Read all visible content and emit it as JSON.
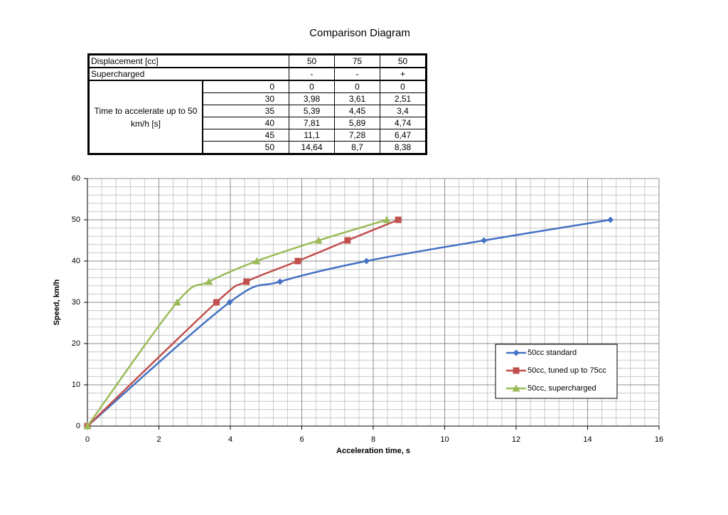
{
  "title": "Comparison Diagram",
  "table": {
    "header_rows": [
      {
        "label": "Displacement [cc]",
        "cells": [
          "50",
          "75",
          "50"
        ]
      },
      {
        "label": "Supercharged",
        "cells": [
          "-",
          "-",
          "+"
        ]
      }
    ],
    "group_label": "Time to accelerate up to 50 km/h [s]",
    "rows": [
      {
        "speed": "0",
        "cells": [
          "0",
          "0",
          "0"
        ]
      },
      {
        "speed": "30",
        "cells": [
          "3,98",
          "3,61",
          "2,51"
        ]
      },
      {
        "speed": "35",
        "cells": [
          "5,39",
          "4,45",
          "3,4"
        ]
      },
      {
        "speed": "40",
        "cells": [
          "7,81",
          "5,89",
          "4,74"
        ]
      },
      {
        "speed": "45",
        "cells": [
          "11,1",
          "7,28",
          "6,47"
        ]
      },
      {
        "speed": "50",
        "cells": [
          "14,64",
          "8,7",
          "8,38"
        ]
      }
    ]
  },
  "chart_data": {
    "type": "line",
    "x_label": "Acceleration time, s",
    "y_label": "Speed, km/h",
    "xlim": [
      0,
      16
    ],
    "xticks": [
      0,
      2,
      4,
      6,
      8,
      10,
      12,
      14,
      16
    ],
    "ylim": [
      0,
      60
    ],
    "yticks": [
      0,
      10,
      20,
      30,
      40,
      50,
      60
    ],
    "grid": true,
    "minor_divisions": 5,
    "smooth": true,
    "legend": "lower right",
    "series": [
      {
        "name": "50cc standard",
        "color": "#4472c4",
        "marker": "diamond",
        "x": [
          0,
          3.98,
          5.39,
          7.81,
          11.1,
          14.64
        ],
        "values": [
          0,
          30,
          35,
          40,
          45,
          50
        ]
      },
      {
        "name": "50cc, tuned up to 75cc",
        "color": "#c0504d",
        "marker": "square",
        "x": [
          0,
          3.61,
          4.45,
          5.89,
          7.28,
          8.7
        ],
        "values": [
          0,
          30,
          35,
          40,
          45,
          50
        ]
      },
      {
        "name": "50cc, supercharged",
        "color": "#9bbb59",
        "marker": "triangle",
        "x": [
          0,
          2.51,
          3.4,
          4.74,
          6.47,
          8.38
        ],
        "values": [
          0,
          30,
          35,
          40,
          45,
          50
        ]
      }
    ]
  }
}
